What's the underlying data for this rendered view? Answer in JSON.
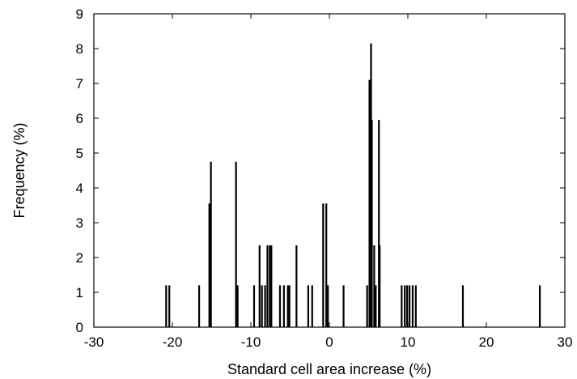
{
  "chart_data": {
    "type": "bar",
    "title": "",
    "xlabel": "Standard cell area increase (%)",
    "ylabel": "Frequency (%)",
    "xlim": [
      -30,
      30
    ],
    "ylim": [
      0,
      9
    ],
    "xticks": [
      "-30",
      "-20",
      "-10",
      "0",
      "10",
      "20",
      "30"
    ],
    "yticks": [
      "0",
      "1",
      "2",
      "3",
      "4",
      "5",
      "6",
      "7",
      "8",
      "9"
    ],
    "grid": false,
    "legend": "none",
    "bar_color": "#000000",
    "x": [
      -20.8,
      -20.4,
      -16.6,
      -15.3,
      -15.1,
      -11.9,
      -11.7,
      -9.6,
      -8.9,
      -8.6,
      -8.2,
      -7.9,
      -7.6,
      -7.4,
      -6.3,
      -5.8,
      -5.3,
      -5.1,
      -4.2,
      -2.7,
      -2.2,
      -0.8,
      -0.4,
      -0.2,
      1.8,
      4.8,
      5.1,
      5.3,
      5.4,
      5.7,
      5.9,
      6.3,
      6.4,
      9.2,
      9.6,
      9.9,
      10.2,
      10.6,
      11.0,
      17.0,
      26.8
    ],
    "values": [
      1.2,
      1.2,
      1.2,
      3.55,
      4.75,
      4.75,
      1.2,
      1.2,
      2.35,
      1.2,
      1.2,
      2.35,
      2.35,
      2.35,
      1.2,
      1.2,
      1.2,
      1.2,
      2.35,
      1.2,
      1.2,
      3.55,
      3.55,
      1.2,
      1.2,
      1.2,
      7.1,
      8.15,
      5.95,
      2.35,
      1.2,
      5.95,
      2.35,
      1.2,
      1.2,
      1.2,
      1.2,
      1.2,
      1.2,
      1.2,
      1.2
    ]
  }
}
